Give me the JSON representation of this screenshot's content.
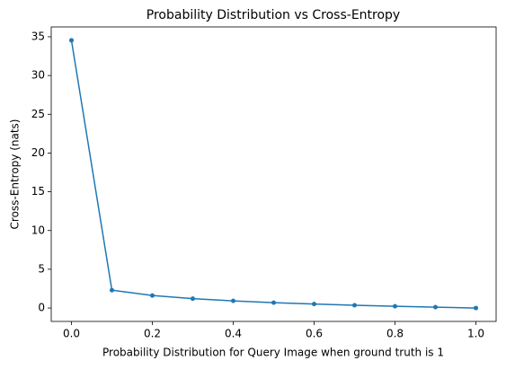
{
  "chart_data": {
    "type": "line",
    "title": "Probability Distribution vs Cross-Entropy",
    "x_label": "Probability Distribution for Query Image when ground truth is 1",
    "y_label": "Cross-Entropy (nats)",
    "x": [
      0.0,
      0.1,
      0.2,
      0.3,
      0.4,
      0.5,
      0.6,
      0.7,
      0.8,
      0.9,
      1.0
    ],
    "series": [
      {
        "name": "Cross-Entropy",
        "color": "#1f77b4",
        "values": [
          34.54,
          2.303,
          1.609,
          1.204,
          0.916,
          0.693,
          0.511,
          0.357,
          0.223,
          0.105,
          0.0
        ]
      }
    ],
    "xlim": [
      -0.05,
      1.05
    ],
    "xticks": [
      {
        "value": 0,
        "label": "0.0"
      },
      {
        "value": 0.2,
        "label": "0.2"
      },
      {
        "value": 0.4,
        "label": "0.4"
      },
      {
        "value": 0.6,
        "label": "0.6"
      },
      {
        "value": 0.8,
        "label": "0.8"
      },
      {
        "value": 1.0,
        "label": "1.0"
      }
    ],
    "ylim": [
      -1.73,
      36.27
    ],
    "yticks": [
      0,
      5,
      10,
      15,
      20,
      25,
      30,
      35
    ],
    "grid": false
  }
}
